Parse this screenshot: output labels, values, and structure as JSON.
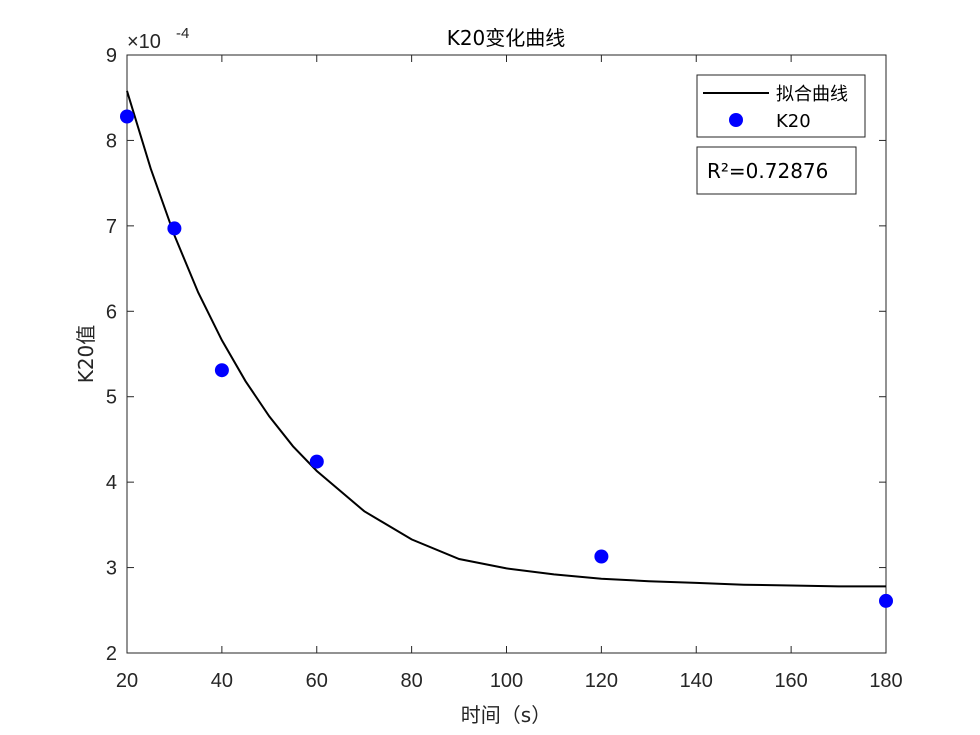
{
  "chart_data": {
    "type": "scatter",
    "title": "K20变化曲线",
    "xlabel": "时间（s）",
    "ylabel": "K20值",
    "xlim": [
      20,
      180
    ],
    "ylim": [
      2,
      9
    ],
    "y_exponent_label": "×10",
    "y_exponent_power": "-4",
    "x_ticks": [
      "20",
      "40",
      "60",
      "80",
      "100",
      "120",
      "140",
      "160",
      "180"
    ],
    "y_ticks": [
      "2",
      "3",
      "4",
      "5",
      "6",
      "7",
      "8",
      "9"
    ],
    "grid": false,
    "legend_position": "top-right",
    "series": [
      {
        "name": "拟合曲线",
        "kind": "line",
        "color": "#000000",
        "x": [
          20,
          25,
          30,
          35,
          40,
          45,
          50,
          55,
          60,
          70,
          80,
          90,
          100,
          110,
          120,
          130,
          140,
          150,
          160,
          170,
          180
        ],
        "y": [
          8.58,
          7.67,
          6.89,
          6.22,
          5.66,
          5.18,
          4.77,
          4.42,
          4.13,
          3.66,
          3.33,
          3.1,
          2.99,
          2.92,
          2.87,
          2.84,
          2.82,
          2.8,
          2.79,
          2.78,
          2.78
        ]
      },
      {
        "name": "K20",
        "kind": "scatter",
        "color": "#0000ff",
        "x": [
          20,
          30,
          40,
          60,
          120,
          180
        ],
        "y": [
          8.28,
          6.97,
          5.31,
          4.24,
          3.13,
          2.61
        ]
      }
    ],
    "annotation": "R²=0.72876"
  }
}
